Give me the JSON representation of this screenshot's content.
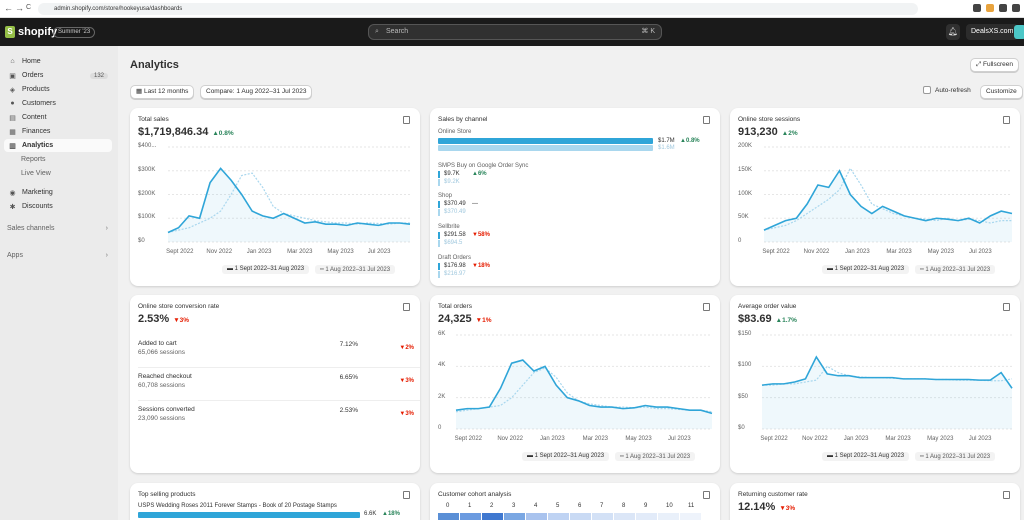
{
  "browser": {
    "url": "admin.shopify.com/store/hookeyusa/dashboards",
    "back": "←",
    "forward": "→",
    "reload": "C"
  },
  "topbar": {
    "brand": "shopify",
    "edition": "Summer '23",
    "search_placeholder": "Search",
    "search_shortcut": "⌘ K",
    "store_name": "DealsXS.com"
  },
  "sidebar": {
    "items": [
      {
        "label": "Home",
        "icon": "home-icon"
      },
      {
        "label": "Orders",
        "count": "132",
        "icon": "orders-icon"
      },
      {
        "label": "Products",
        "icon": "products-icon"
      },
      {
        "label": "Customers",
        "icon": "customers-icon"
      },
      {
        "label": "Content",
        "icon": "content-icon"
      },
      {
        "label": "Finances",
        "icon": "finances-icon"
      },
      {
        "label": "Analytics",
        "icon": "analytics-icon"
      },
      {
        "label": "Reports"
      },
      {
        "label": "Live View"
      },
      {
        "label": "Marketing",
        "icon": "marketing-icon"
      },
      {
        "label": "Discounts",
        "icon": "discounts-icon"
      }
    ],
    "sales_channels": "Sales channels",
    "apps": "Apps"
  },
  "page": {
    "title": "Analytics",
    "fullscreen": "Fullscreen",
    "date_range": "Last 12 months",
    "compare": "Compare: 1 Aug 2022–31 Jul 2023",
    "auto_refresh": "Auto-refresh",
    "customize": "Customize"
  },
  "legend": {
    "current": "1 Sept 2022–31 Aug 2023",
    "previous": "1 Aug 2022–31 Jul 2023"
  },
  "cards": {
    "total_sales": {
      "title": "Total sales",
      "value": "$1,719,846.34",
      "change": "▲0.8%",
      "yticks": [
        "$400...",
        "$300K",
        "$200K",
        "$100K",
        "$0"
      ],
      "xticks": [
        "Sept 2022",
        "Nov 2022",
        "Jan 2023",
        "Mar 2023",
        "May 2023",
        "Jul 2023"
      ]
    },
    "sales_by_channel": {
      "title": "Sales by channel",
      "channels": [
        {
          "name": "Online Store",
          "cur": "$1.7M",
          "prev": "$1.6M",
          "change": "▲0.8%",
          "dir": "up"
        },
        {
          "name": "SMPS Buy on Google Order Sync",
          "cur": "$9.7K",
          "prev": "$9.2K",
          "change": "▲6%",
          "dir": "up"
        },
        {
          "name": "Shop",
          "cur": "$370.49",
          "prev": "$370.49",
          "change": "—",
          "dir": "none"
        },
        {
          "name": "Sellbrite",
          "cur": "$291.58",
          "prev": "$694.5",
          "change": "▼58%",
          "dir": "down"
        },
        {
          "name": "Draft Orders",
          "cur": "$176.98",
          "prev": "$216.97",
          "change": "▼18%",
          "dir": "down"
        }
      ]
    },
    "sessions": {
      "title": "Online store sessions",
      "value": "913,230",
      "change": "▲2%",
      "yticks": [
        "200K",
        "150K",
        "100K",
        "50K",
        "0"
      ],
      "xticks": [
        "Sept 2022",
        "Nov 2022",
        "Jan 2023",
        "Mar 2023",
        "May 2023",
        "Jul 2023"
      ]
    },
    "conversion": {
      "title": "Online store conversion rate",
      "value": "2.53%",
      "change": "▼3%",
      "rows": [
        {
          "name": "Added to cart",
          "sessions": "65,066 sessions",
          "pct": "7.12%",
          "change": "▼2%"
        },
        {
          "name": "Reached checkout",
          "sessions": "60,708 sessions",
          "pct": "6.65%",
          "change": "▼3%"
        },
        {
          "name": "Sessions converted",
          "sessions": "23,090 sessions",
          "pct": "2.53%",
          "change": "▼3%"
        }
      ]
    },
    "orders": {
      "title": "Total orders",
      "value": "24,325",
      "change": "▼1%",
      "yticks": [
        "6K",
        "4K",
        "2K",
        "0"
      ],
      "xticks": [
        "Sept 2022",
        "Nov 2022",
        "Jan 2023",
        "Mar 2023",
        "May 2023",
        "Jul 2023"
      ]
    },
    "aov": {
      "title": "Average order value",
      "value": "$83.69",
      "change": "▲1.7%",
      "yticks": [
        "$150",
        "$100",
        "$50",
        "$0"
      ],
      "xticks": [
        "Sept 2022",
        "Nov 2022",
        "Jan 2023",
        "Mar 2023",
        "May 2023",
        "Jul 2023"
      ]
    },
    "top_products": {
      "title": "Top selling products",
      "item": "USPS Wedding Roses 2011 Forever Stamps - Book of 20 Postage Stamps",
      "value": "6.6K",
      "change": "▲18%"
    },
    "cohort": {
      "title": "Customer cohort analysis",
      "cols": [
        "0",
        "1",
        "2",
        "3",
        "4",
        "5",
        "6",
        "7",
        "8",
        "9",
        "10",
        "11"
      ]
    },
    "returning": {
      "title": "Returning customer rate",
      "value": "12.14%",
      "change": "▼3%"
    }
  },
  "colors": {
    "current": "#2fa5d8",
    "previous": "#a9d7ee",
    "up": "#29845a",
    "down": "#e51c00"
  },
  "chart_data": [
    {
      "type": "line",
      "title": "Total sales",
      "ylim": [
        0,
        400000
      ],
      "series": [
        {
          "name": "1 Sept 2022–31 Aug 2023",
          "values": [
            40000,
            60000,
            110000,
            100000,
            250000,
            310000,
            260000,
            200000,
            130000,
            110000,
            100000,
            120000,
            100000,
            80000,
            85000,
            75000,
            75000,
            70000,
            80000,
            75000,
            70000,
            80000,
            80000,
            75000
          ]
        },
        {
          "name": "1 Aug 2022–31 Jul 2023",
          "values": [
            40000,
            50000,
            60000,
            80000,
            100000,
            130000,
            200000,
            280000,
            290000,
            230000,
            150000,
            120000,
            110000,
            100000,
            90000,
            85000,
            80000,
            80000,
            75000,
            80000,
            78000,
            75000,
            80000,
            80000
          ]
        }
      ]
    },
    {
      "type": "line",
      "title": "Online store sessions",
      "ylim": [
        0,
        200000
      ],
      "series": [
        {
          "name": "1 Sept 2022–31 Aug 2023",
          "values": [
            25000,
            35000,
            45000,
            50000,
            80000,
            120000,
            115000,
            150000,
            100000,
            75000,
            60000,
            75000,
            65000,
            55000,
            50000,
            45000,
            50000,
            48000,
            45000,
            50000,
            40000,
            55000,
            65000,
            60000
          ]
        },
        {
          "name": "1 Aug 2022–31 Jul 2023",
          "values": [
            25000,
            30000,
            35000,
            45000,
            60000,
            75000,
            90000,
            110000,
            155000,
            120000,
            80000,
            70000,
            60000,
            55000,
            50000,
            48000,
            45000,
            50000,
            45000,
            48000,
            45000,
            40000,
            45000,
            45000
          ]
        }
      ]
    },
    {
      "type": "line",
      "title": "Total orders",
      "ylim": [
        0,
        6000
      ],
      "series": [
        {
          "name": "1 Sept 2022–31 Aug 2023",
          "values": [
            1200,
            1300,
            1300,
            1400,
            2600,
            4200,
            4400,
            3700,
            4000,
            2800,
            2000,
            1800,
            1500,
            1400,
            1400,
            1300,
            1350,
            1500,
            1400,
            1400,
            1300,
            1200,
            1200,
            1000
          ]
        },
        {
          "name": "1 Aug 2022–31 Jul 2023",
          "values": [
            1100,
            1200,
            1300,
            1400,
            1500,
            2000,
            2800,
            3600,
            3900,
            3300,
            2300,
            1800,
            1600,
            1500,
            1400,
            1400,
            1350,
            1400,
            1300,
            1300,
            1250,
            1200,
            1200,
            1100
          ]
        }
      ]
    },
    {
      "type": "line",
      "title": "Average order value",
      "ylim": [
        0,
        150
      ],
      "series": [
        {
          "name": "1 Sept 2022–31 Aug 2023",
          "values": [
            70,
            72,
            72,
            75,
            80,
            115,
            88,
            85,
            85,
            82,
            82,
            82,
            82,
            80,
            80,
            80,
            79,
            79,
            79,
            79,
            78,
            78,
            90,
            65
          ]
        },
        {
          "name": "1 Aug 2022–31 Jul 2023",
          "values": [
            70,
            70,
            72,
            72,
            75,
            78,
            100,
            90,
            85,
            83,
            82,
            82,
            81,
            80,
            80,
            80,
            79,
            79,
            78,
            78,
            78,
            77,
            77,
            80
          ]
        }
      ]
    }
  ]
}
